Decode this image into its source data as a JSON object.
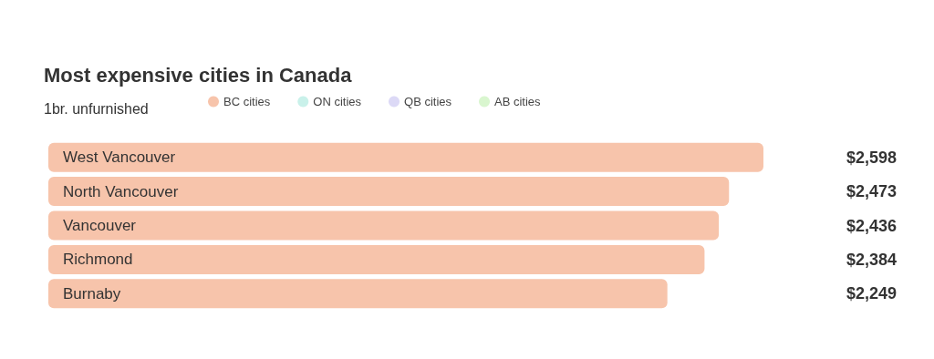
{
  "chart_data": {
    "type": "bar",
    "orientation": "horizontal",
    "title": "Most expensive cities in Canada",
    "subtitle": "1br. unfurnished",
    "categories": [
      "West Vancouver",
      "North Vancouver",
      "Vancouver",
      "Richmond",
      "Burnaby"
    ],
    "series": [
      {
        "name": "BC cities",
        "color": "#f7c4ab",
        "values": [
          2598,
          2473,
          2436,
          2384,
          2249
        ],
        "value_labels": [
          "$2,598",
          "$2,473",
          "$2,436",
          "$2,384",
          "$2,249"
        ]
      },
      {
        "name": "ON cities",
        "color": "#c9f1ea",
        "values": [
          null,
          null,
          null,
          null,
          null
        ]
      },
      {
        "name": "QB cities",
        "color": "#dcd9f6",
        "values": [
          null,
          null,
          null,
          null,
          null
        ]
      },
      {
        "name": "AB cities",
        "color": "#d9f6cf",
        "values": [
          null,
          null,
          null,
          null,
          null
        ]
      }
    ],
    "legend": "top"
  }
}
